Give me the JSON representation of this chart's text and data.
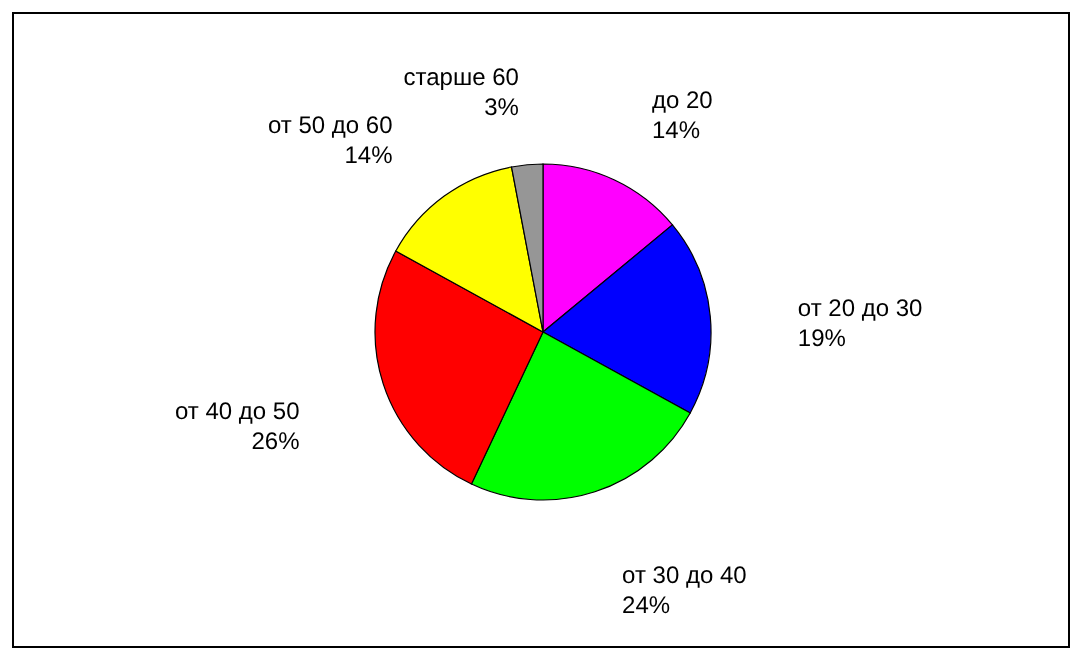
{
  "chart_data": {
    "type": "pie",
    "categories": [
      "до 20",
      "от 20 до 30",
      "от 30 до 40",
      "от 40 до 50",
      "от 50 до 60",
      "старше 60"
    ],
    "values": [
      14,
      19,
      24,
      26,
      14,
      3
    ],
    "colors": [
      "#ff00ff",
      "#0000ff",
      "#00ff00",
      "#ff0000",
      "#ffff00",
      "#969696"
    ],
    "value_labels": [
      "14%",
      "19%",
      "24%",
      "26%",
      "14%",
      "3%"
    ]
  }
}
